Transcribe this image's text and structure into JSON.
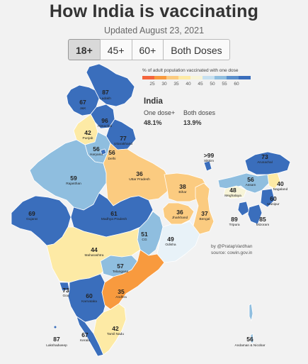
{
  "title": "How India is vaccinating",
  "updated": "Updated August 23, 2021",
  "tabs": [
    {
      "label": "18+",
      "active": true
    },
    {
      "label": "45+",
      "active": false
    },
    {
      "label": "60+",
      "active": false
    },
    {
      "label": "Both Doses",
      "active": false
    }
  ],
  "legend": {
    "title": "% of adult population vaccinated with one dose",
    "ticks": [
      "25",
      "30",
      "35",
      "40",
      "45",
      "50",
      "55",
      "60"
    ],
    "colors": [
      "#f4643c",
      "#f89a3e",
      "#fbcb80",
      "#fdeaa5",
      "#f7f4d8",
      "#c6e0f0",
      "#8fbedf",
      "#5a8fcc",
      "#3a6ebc"
    ]
  },
  "summary": {
    "region": "India",
    "one_dose_label": "One dose+",
    "one_dose_value": "48.1%",
    "both_label": "Both doses",
    "both_value": "13.9%"
  },
  "credit": {
    "line1": "by @PratapVardhan",
    "line2": "source: cowin.gov.in"
  },
  "states": [
    {
      "key": "ladakh",
      "name": "Ladakh",
      "value": "87"
    },
    {
      "key": "jk",
      "name": "J&K",
      "value": "67"
    },
    {
      "key": "himachal",
      "name": "Himachal",
      "value": "96"
    },
    {
      "key": "punjab",
      "name": "Punjab",
      "value": "42"
    },
    {
      "key": "uttarakhand",
      "name": "Uttarakhand",
      "value": "77"
    },
    {
      "key": "haryana",
      "name": "Haryana",
      "value": "56"
    },
    {
      "key": "delhi",
      "name": "Delhi",
      "value": "56"
    },
    {
      "key": "rajasthan",
      "name": "Rajasthan",
      "value": "59"
    },
    {
      "key": "up",
      "name": "Uttar Pradesh",
      "value": "36"
    },
    {
      "key": "bihar",
      "name": "Bihar",
      "value": "38"
    },
    {
      "key": "sikkim",
      "name": "Sikkim",
      "value": ">99"
    },
    {
      "key": "arunachal",
      "name": "Arunachal",
      "value": "73"
    },
    {
      "key": "assam",
      "name": "Assam",
      "value": "56"
    },
    {
      "key": "nagaland",
      "name": "Nagaland",
      "value": "40"
    },
    {
      "key": "meghalaya",
      "name": "Meghalaya",
      "value": "48"
    },
    {
      "key": "manipur",
      "name": "Manipur",
      "value": "60"
    },
    {
      "key": "tripura",
      "name": "Tripura",
      "value": "89"
    },
    {
      "key": "mizoram",
      "name": "Mizoram",
      "value": "85"
    },
    {
      "key": "gujarat",
      "name": "Gujarat",
      "value": "69"
    },
    {
      "key": "mp",
      "name": "Madhya Pradesh",
      "value": "61"
    },
    {
      "key": "jharkhand",
      "name": "Jharkhand",
      "value": "36"
    },
    {
      "key": "bengal",
      "name": "Bengal",
      "value": "37"
    },
    {
      "key": "cg",
      "name": "CG",
      "value": "51"
    },
    {
      "key": "odisha",
      "name": "Odisha",
      "value": "49"
    },
    {
      "key": "maharashtra",
      "name": "Maharashtra",
      "value": "44"
    },
    {
      "key": "telangana",
      "name": "Telangana",
      "value": "57"
    },
    {
      "key": "goa",
      "name": "Goa",
      "value": "73"
    },
    {
      "key": "karnataka",
      "name": "Karnataka",
      "value": "60"
    },
    {
      "key": "andhra",
      "name": "Andhra",
      "value": "35"
    },
    {
      "key": "tn",
      "name": "Tamil Nadu",
      "value": "42"
    },
    {
      "key": "kerala",
      "name": "Kerala",
      "value": "67"
    },
    {
      "key": "lakshadweep",
      "name": "Lakshadweep",
      "value": "87"
    },
    {
      "key": "andaman",
      "name": "Andaman & Nicobar",
      "value": "56"
    }
  ]
}
